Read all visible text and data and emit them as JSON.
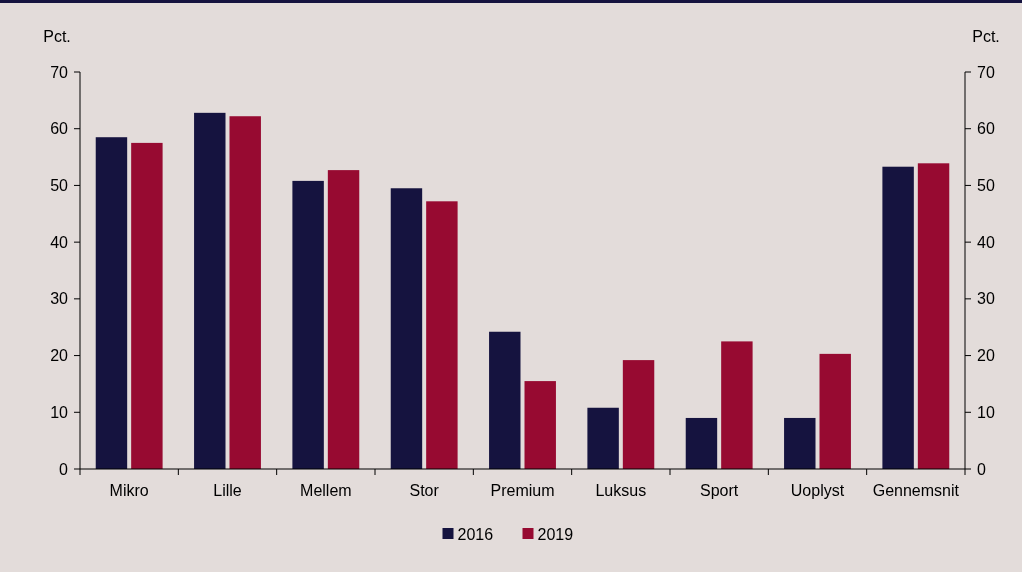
{
  "chart_data": {
    "type": "bar",
    "ylabel": "Pct.",
    "y2label": "Pct.",
    "categories": [
      "Mikro",
      "Lille",
      "Mellem",
      "Stor",
      "Premium",
      "Luksus",
      "Sport",
      "Uoplyst",
      "Gennemsnit"
    ],
    "series": [
      {
        "name": "2016",
        "color": "#15133f",
        "values": [
          58.5,
          62.8,
          50.8,
          49.5,
          24.2,
          10.8,
          9.0,
          9.0,
          53.3
        ]
      },
      {
        "name": "2019",
        "color": "#970a31",
        "values": [
          57.5,
          62.2,
          52.7,
          47.2,
          15.5,
          19.2,
          22.5,
          20.3,
          53.9
        ]
      }
    ],
    "ylim": [
      0,
      70
    ],
    "yticks": [
      0,
      10,
      20,
      30,
      40,
      50,
      60,
      70
    ],
    "y2lim": [
      0,
      70
    ],
    "y2ticks": [
      0,
      10,
      20,
      30,
      40,
      50,
      60,
      70
    ],
    "grid": false,
    "legend": "bottom"
  }
}
